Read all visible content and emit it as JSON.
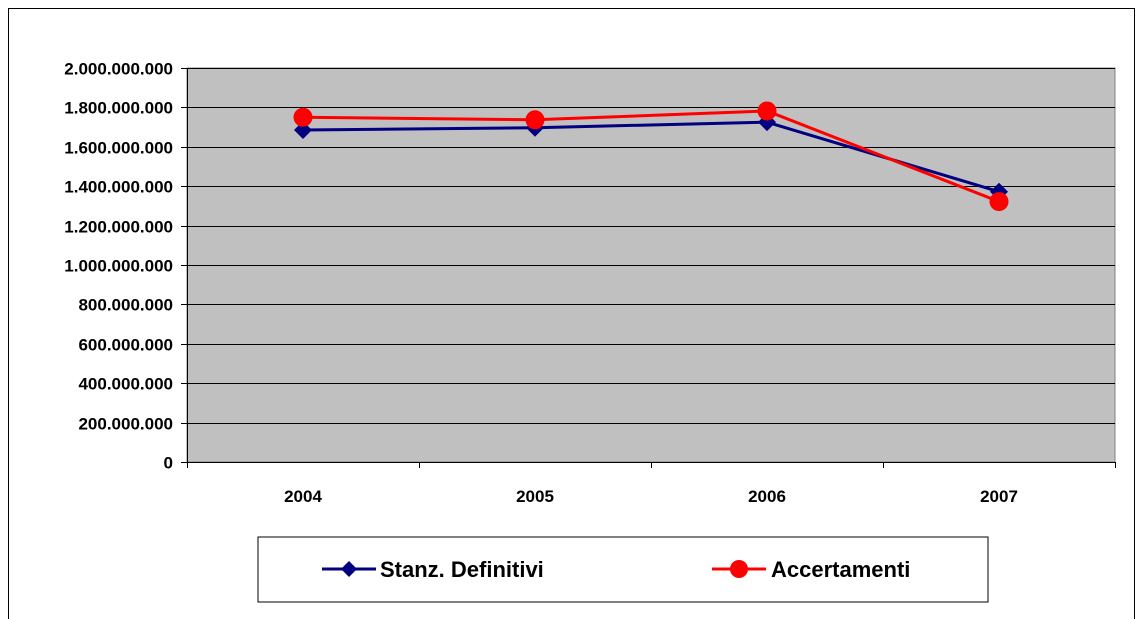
{
  "chart_data": {
    "type": "line",
    "title": "",
    "xlabel": "",
    "ylabel": "",
    "categories": [
      "2004",
      "2005",
      "2006",
      "2007"
    ],
    "ylim": [
      0,
      2000000000
    ],
    "ytick_step": 200000000,
    "y_tick_labels": [
      "0",
      "200.000.000",
      "400.000.000",
      "600.000.000",
      "800.000.000",
      "1.000.000.000",
      "1.200.000.000",
      "1.400.000.000",
      "1.600.000.000",
      "1.800.000.000",
      "2.000.000.000"
    ],
    "grid": "horizontal",
    "plot_background": "#c0c0c0",
    "legend_position": "bottom",
    "series": [
      {
        "name": "Stanz. Definitivi",
        "values": [
          1685000000,
          1697000000,
          1725000000,
          1372000000
        ],
        "color": "#000080",
        "marker": "diamond"
      },
      {
        "name": "Accertamenti",
        "values": [
          1750000000,
          1737000000,
          1782000000,
          1322000000
        ],
        "color": "#ff0000",
        "marker": "circle"
      }
    ]
  }
}
